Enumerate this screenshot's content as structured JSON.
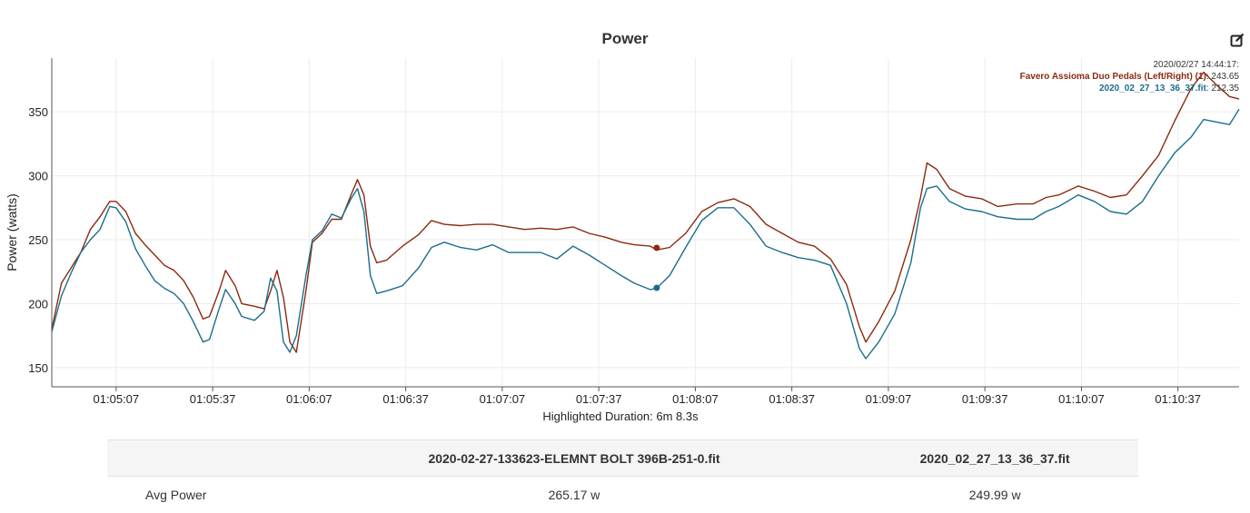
{
  "chart_data": {
    "type": "line",
    "title": "Power",
    "ylabel": "Power (watts)",
    "xlabel": "Highlighted Duration: 6m 8.3s",
    "ylim": [
      135,
      392
    ],
    "xlim": [
      "01:04:47",
      "01:10:56"
    ],
    "x_ticks": [
      "01:05:07",
      "01:05:37",
      "01:06:07",
      "01:06:37",
      "01:07:07",
      "01:07:37",
      "01:08:07",
      "01:08:37",
      "01:09:07",
      "01:09:37",
      "01:10:07",
      "01:10:37"
    ],
    "y_ticks": [
      150,
      200,
      250,
      300,
      350
    ],
    "grid": true,
    "series": [
      {
        "name": "Favero Assioma Duo Pedals (Left/Right) (1)",
        "color": "#8b2a10",
        "points": [
          [
            "01:04:47",
            180
          ],
          [
            "01:04:50",
            216
          ],
          [
            "01:04:53",
            228
          ],
          [
            "01:04:56",
            240
          ],
          [
            "01:04:59",
            258
          ],
          [
            "01:05:02",
            268
          ],
          [
            "01:05:05",
            280
          ],
          [
            "01:05:07",
            280
          ],
          [
            "01:05:10",
            272
          ],
          [
            "01:05:13",
            255
          ],
          [
            "01:05:16",
            246
          ],
          [
            "01:05:19",
            238
          ],
          [
            "01:05:22",
            230
          ],
          [
            "01:05:25",
            226
          ],
          [
            "01:05:28",
            218
          ],
          [
            "01:05:31",
            205
          ],
          [
            "01:05:34",
            188
          ],
          [
            "01:05:36",
            190
          ],
          [
            "01:05:39",
            210
          ],
          [
            "01:05:41",
            226
          ],
          [
            "01:05:44",
            214
          ],
          [
            "01:05:46",
            200
          ],
          [
            "01:05:50",
            198
          ],
          [
            "01:05:53",
            196
          ],
          [
            "01:05:55",
            210
          ],
          [
            "01:05:57",
            226
          ],
          [
            "01:05:59",
            205
          ],
          [
            "01:06:01",
            170
          ],
          [
            "01:06:03",
            162
          ],
          [
            "01:06:06",
            210
          ],
          [
            "01:06:08",
            248
          ],
          [
            "01:06:11",
            255
          ],
          [
            "01:06:14",
            266
          ],
          [
            "01:06:17",
            266
          ],
          [
            "01:06:20",
            285
          ],
          [
            "01:06:22",
            297
          ],
          [
            "01:06:24",
            285
          ],
          [
            "01:06:26",
            245
          ],
          [
            "01:06:28",
            232
          ],
          [
            "01:06:31",
            234
          ],
          [
            "01:06:36",
            245
          ],
          [
            "01:06:41",
            254
          ],
          [
            "01:06:45",
            265
          ],
          [
            "01:06:49",
            262
          ],
          [
            "01:06:54",
            261
          ],
          [
            "01:06:59",
            262
          ],
          [
            "01:07:04",
            262
          ],
          [
            "01:07:09",
            260
          ],
          [
            "01:07:14",
            258
          ],
          [
            "01:07:19",
            259
          ],
          [
            "01:07:24",
            258
          ],
          [
            "01:07:29",
            260
          ],
          [
            "01:07:34",
            255
          ],
          [
            "01:07:39",
            252
          ],
          [
            "01:07:44",
            248
          ],
          [
            "01:07:48",
            246
          ],
          [
            "01:07:53",
            245
          ],
          [
            "01:07:55",
            242
          ],
          [
            "01:07:59",
            244
          ],
          [
            "01:08:04",
            255
          ],
          [
            "01:08:09",
            272
          ],
          [
            "01:08:14",
            279
          ],
          [
            "01:08:19",
            282
          ],
          [
            "01:08:24",
            276
          ],
          [
            "01:08:29",
            262
          ],
          [
            "01:08:34",
            255
          ],
          [
            "01:08:39",
            248
          ],
          [
            "01:08:44",
            245
          ],
          [
            "01:08:49",
            235
          ],
          [
            "01:08:54",
            215
          ],
          [
            "01:08:58",
            182
          ],
          [
            "01:09:00",
            170
          ],
          [
            "01:09:04",
            186
          ],
          [
            "01:09:09",
            210
          ],
          [
            "01:09:14",
            250
          ],
          [
            "01:09:17",
            283
          ],
          [
            "01:09:19",
            310
          ],
          [
            "01:09:22",
            305
          ],
          [
            "01:09:26",
            290
          ],
          [
            "01:09:31",
            284
          ],
          [
            "01:09:36",
            282
          ],
          [
            "01:09:41",
            276
          ],
          [
            "01:09:47",
            278
          ],
          [
            "01:09:52",
            278
          ],
          [
            "01:09:56",
            283
          ],
          [
            "01:10:00",
            285
          ],
          [
            "01:10:06",
            292
          ],
          [
            "01:10:11",
            288
          ],
          [
            "01:10:16",
            283
          ],
          [
            "01:10:21",
            285
          ],
          [
            "01:10:26",
            300
          ],
          [
            "01:10:31",
            316
          ],
          [
            "01:10:36",
            343
          ],
          [
            "01:10:41",
            368
          ],
          [
            "01:10:45",
            381
          ],
          [
            "01:10:49",
            371
          ],
          [
            "01:10:53",
            362
          ],
          [
            "01:10:56",
            360
          ]
        ]
      },
      {
        "name": "2020_02_27_13_36_37.fit",
        "color": "#1a6e8c",
        "points": [
          [
            "01:04:47",
            178
          ],
          [
            "01:04:50",
            206
          ],
          [
            "01:04:53",
            224
          ],
          [
            "01:04:56",
            240
          ],
          [
            "01:04:59",
            250
          ],
          [
            "01:05:02",
            258
          ],
          [
            "01:05:05",
            276
          ],
          [
            "01:05:07",
            275
          ],
          [
            "01:05:10",
            264
          ],
          [
            "01:05:13",
            243
          ],
          [
            "01:05:16",
            230
          ],
          [
            "01:05:19",
            218
          ],
          [
            "01:05:22",
            212
          ],
          [
            "01:05:25",
            208
          ],
          [
            "01:05:28",
            200
          ],
          [
            "01:05:31",
            186
          ],
          [
            "01:05:34",
            170
          ],
          [
            "01:05:36",
            172
          ],
          [
            "01:05:39",
            196
          ],
          [
            "01:05:41",
            211
          ],
          [
            "01:05:44",
            200
          ],
          [
            "01:05:46",
            190
          ],
          [
            "01:05:50",
            187
          ],
          [
            "01:05:53",
            194
          ],
          [
            "01:05:55",
            220
          ],
          [
            "01:05:57",
            210
          ],
          [
            "01:05:59",
            170
          ],
          [
            "01:06:01",
            162
          ],
          [
            "01:06:03",
            175
          ],
          [
            "01:06:06",
            222
          ],
          [
            "01:06:08",
            250
          ],
          [
            "01:06:11",
            257
          ],
          [
            "01:06:14",
            270
          ],
          [
            "01:06:17",
            267
          ],
          [
            "01:06:20",
            282
          ],
          [
            "01:06:22",
            290
          ],
          [
            "01:06:24",
            272
          ],
          [
            "01:06:26",
            222
          ],
          [
            "01:06:28",
            208
          ],
          [
            "01:06:31",
            210
          ],
          [
            "01:06:36",
            214
          ],
          [
            "01:06:41",
            228
          ],
          [
            "01:06:45",
            244
          ],
          [
            "01:06:49",
            248
          ],
          [
            "01:06:54",
            244
          ],
          [
            "01:06:59",
            242
          ],
          [
            "01:07:04",
            246
          ],
          [
            "01:07:09",
            240
          ],
          [
            "01:07:14",
            240
          ],
          [
            "01:07:19",
            240
          ],
          [
            "01:07:24",
            235
          ],
          [
            "01:07:29",
            245
          ],
          [
            "01:07:34",
            238
          ],
          [
            "01:07:39",
            230
          ],
          [
            "01:07:44",
            222
          ],
          [
            "01:07:48",
            216
          ],
          [
            "01:07:53",
            211
          ],
          [
            "01:07:55",
            212
          ],
          [
            "01:07:59",
            222
          ],
          [
            "01:08:04",
            244
          ],
          [
            "01:08:09",
            265
          ],
          [
            "01:08:14",
            275
          ],
          [
            "01:08:19",
            275
          ],
          [
            "01:08:24",
            262
          ],
          [
            "01:08:29",
            245
          ],
          [
            "01:08:34",
            240
          ],
          [
            "01:08:39",
            236
          ],
          [
            "01:08:44",
            234
          ],
          [
            "01:08:49",
            230
          ],
          [
            "01:08:54",
            200
          ],
          [
            "01:08:58",
            165
          ],
          [
            "01:09:00",
            157
          ],
          [
            "01:09:04",
            170
          ],
          [
            "01:09:09",
            192
          ],
          [
            "01:09:14",
            232
          ],
          [
            "01:09:17",
            275
          ],
          [
            "01:09:19",
            290
          ],
          [
            "01:09:22",
            292
          ],
          [
            "01:09:26",
            280
          ],
          [
            "01:09:31",
            274
          ],
          [
            "01:09:36",
            272
          ],
          [
            "01:09:41",
            268
          ],
          [
            "01:09:47",
            266
          ],
          [
            "01:09:52",
            266
          ],
          [
            "01:09:56",
            272
          ],
          [
            "01:10:00",
            276
          ],
          [
            "01:10:06",
            285
          ],
          [
            "01:10:11",
            280
          ],
          [
            "01:10:16",
            272
          ],
          [
            "01:10:21",
            270
          ],
          [
            "01:10:26",
            280
          ],
          [
            "01:10:31",
            300
          ],
          [
            "01:10:36",
            318
          ],
          [
            "01:10:41",
            330
          ],
          [
            "01:10:45",
            344
          ],
          [
            "01:10:49",
            342
          ],
          [
            "01:10:53",
            340
          ],
          [
            "01:10:56",
            352
          ]
        ]
      }
    ],
    "highlight": {
      "time": "2020/02/27 14:44:17:",
      "x": "01:07:55",
      "values": [
        "243.65",
        "212.35"
      ]
    }
  },
  "table": {
    "headers": [
      "",
      "2020-02-27-133623-ELEMNT BOLT 396B-251-0.fit",
      "2020_02_27_13_36_37.fit"
    ],
    "rows": [
      {
        "metric": "Avg Power",
        "values": [
          "265.17 w",
          "249.99 w"
        ]
      }
    ]
  },
  "icons": {
    "edit": "edit-icon"
  }
}
